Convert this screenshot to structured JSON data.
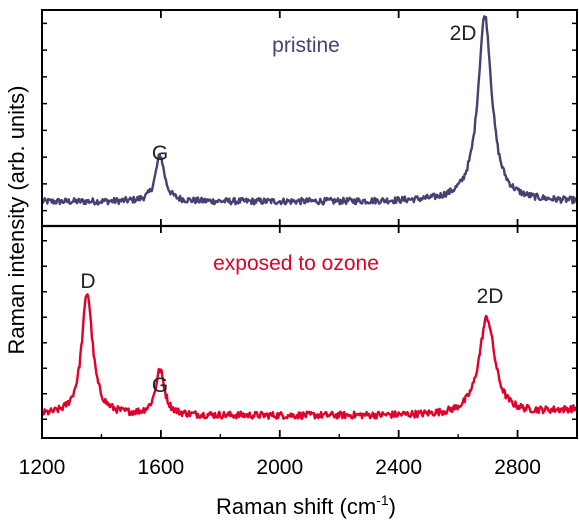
{
  "chart_data": {
    "type": "line",
    "xlabel": "Raman shift (cm",
    "xlabel_sup": "-1",
    "xlabel_end": ")",
    "ylabel": "Raman intensity (arb. units)",
    "xlim": [
      1200,
      3000
    ],
    "xticks": [
      1200,
      1600,
      2000,
      2400,
      2800
    ],
    "xtick_labels": [
      "1200",
      "1600",
      "2000",
      "2400",
      "2800"
    ],
    "panels": [
      {
        "label": "pristine",
        "color": "#4b3f72",
        "baseline": 0.12,
        "peaks": [
          {
            "label": "G",
            "x": 1597,
            "height": 0.25,
            "width": 9
          },
          {
            "label": "2D",
            "x": 2690,
            "height": 1.0,
            "width": 14
          }
        ],
        "ylim": [
          0,
          1.15
        ]
      },
      {
        "label": "exposed to ozone",
        "color": "#e0002a",
        "baseline": 0.08,
        "peaks": [
          {
            "label": "D",
            "x": 1352,
            "height": 0.6,
            "width": 11
          },
          {
            "label": "G",
            "x": 1597,
            "height": 0.22,
            "width": 9
          },
          {
            "label": "2D",
            "x": 2697,
            "height": 0.48,
            "width": 16
          }
        ],
        "ylim": [
          0,
          1.0
        ]
      }
    ]
  }
}
